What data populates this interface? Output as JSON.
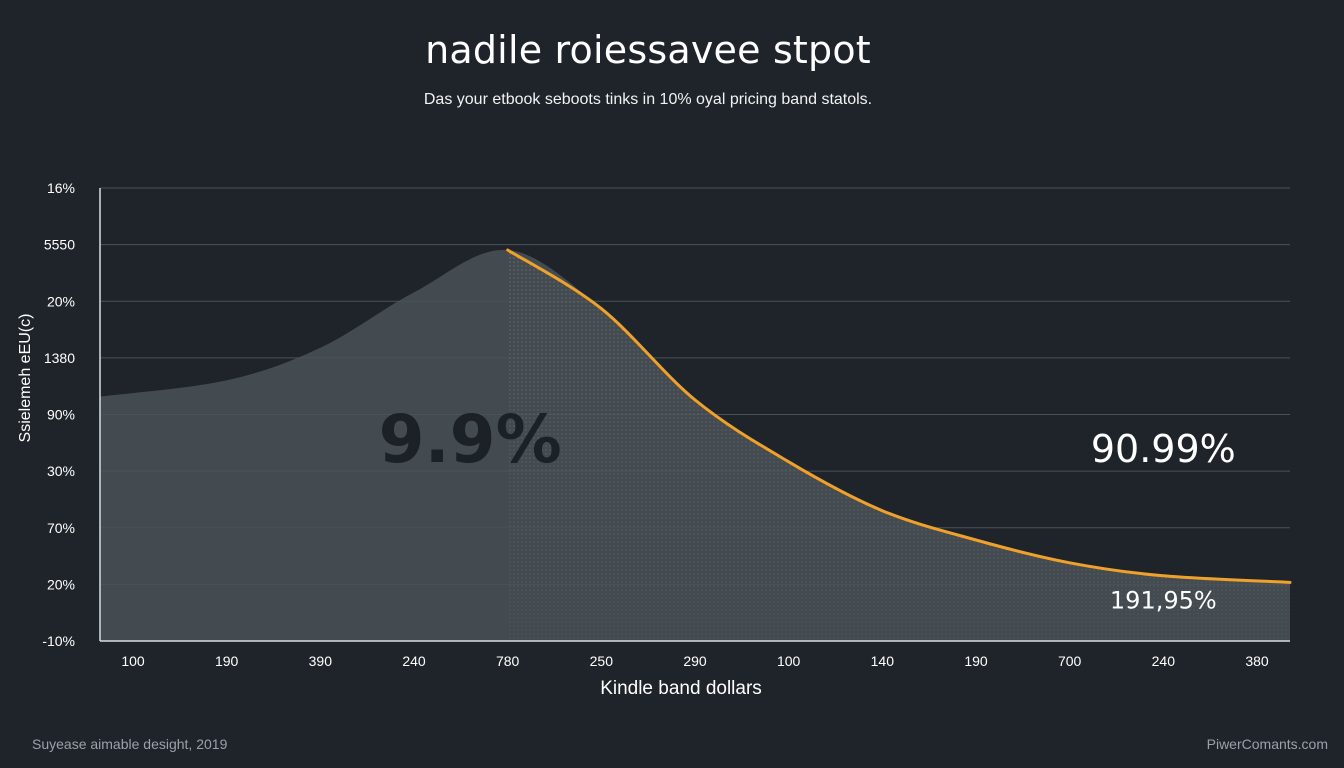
{
  "chart_data": {
    "type": "area",
    "title": "nadile roiessavee stpot",
    "subtitle": "Das your etbook seboots tinks in 10% oyal pricing band statols.",
    "xlabel": "Kindle band dollars",
    "ylabel": "Ssielemeh eEU(c)",
    "x_tick_labels": [
      "100",
      "190",
      "390",
      "240",
      "780",
      "250",
      "290",
      "100",
      "140",
      "190",
      "700",
      "240",
      "380"
    ],
    "y_tick_labels": [
      "16%",
      "5550",
      "20%",
      "1380",
      "90%",
      "30%",
      "70%",
      "20%",
      "-10%"
    ],
    "grid": true,
    "legend": "none",
    "series": [
      {
        "values": [
          0.75,
          0.8,
          0.9,
          1.07,
          1.2,
          1.02,
          0.74,
          0.55,
          0.4,
          0.31,
          0.24,
          0.2,
          0.18
        ],
        "color": "#f0a12a"
      }
    ],
    "y_value_range": [
      0,
      1.2
    ],
    "highlight_from_index": 4,
    "annotations": [
      {
        "text": "9.9%",
        "x_index": 3.6,
        "y_value": 0.55,
        "size": "large",
        "color": "#1c2127"
      },
      {
        "text": "90.99%",
        "x_index": 11.0,
        "y_value": 0.55,
        "size": "medium",
        "color": "#ffffff"
      },
      {
        "text": "191,95%",
        "x_index": 11.0,
        "y_value": 0.1,
        "size": "small",
        "color": "#ffffff"
      }
    ],
    "colors": {
      "line": "#f0a12a",
      "area": "#4a5257",
      "grid": "#4a5157",
      "axis": "#d8dde2",
      "text": "#ffffff",
      "background": "#1f242a"
    }
  },
  "footer": {
    "left": "Suyease aimable desight, 2019",
    "right": "PiwerComants.com"
  }
}
